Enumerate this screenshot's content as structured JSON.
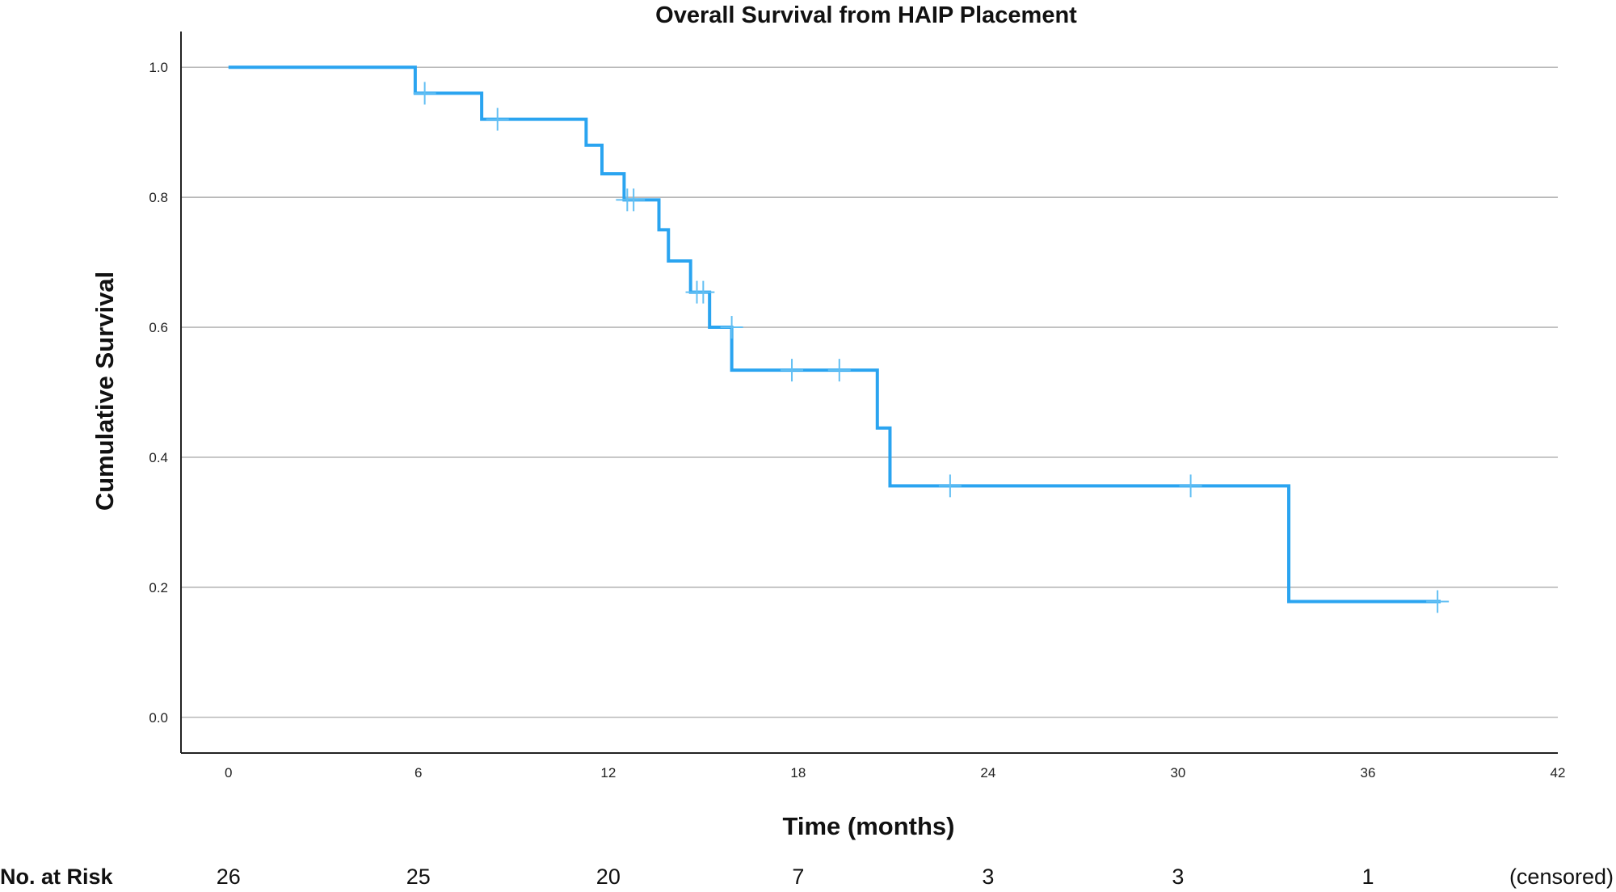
{
  "chart_data": {
    "type": "line",
    "title": "Overall Survival from HAIP Placement",
    "xlabel": "Time (months)",
    "ylabel": "Cumulative Survival",
    "xlim": [
      -1.5,
      42
    ],
    "ylim": [
      -0.055,
      1.055
    ],
    "x_ticks": [
      0,
      6,
      12,
      18,
      24,
      30,
      36,
      42
    ],
    "y_ticks": [
      0.0,
      0.2,
      0.4,
      0.6,
      0.8,
      1.0
    ],
    "y_tick_labels": [
      "0.0",
      "0.2",
      "0.4",
      "0.6",
      "0.8",
      "1.0"
    ],
    "grid": true,
    "line_color": "#2aa4f0",
    "censor_color": "#62bff3",
    "series": [
      {
        "steps": [
          [
            0,
            1.0
          ],
          [
            5.9,
            0.96
          ],
          [
            8.0,
            0.92
          ],
          [
            11.3,
            0.88
          ],
          [
            11.8,
            0.836
          ],
          [
            12.5,
            0.796
          ],
          [
            13.6,
            0.75
          ],
          [
            13.9,
            0.702
          ],
          [
            14.6,
            0.654
          ],
          [
            15.2,
            0.6
          ],
          [
            15.9,
            0.534
          ],
          [
            20.5,
            0.445
          ],
          [
            20.9,
            0.356
          ],
          [
            33.5,
            0.178
          ],
          [
            38.3,
            0.178
          ]
        ],
        "censored": [
          [
            6.2,
            0.96
          ],
          [
            8.5,
            0.92
          ],
          [
            12.6,
            0.796
          ],
          [
            12.8,
            0.796
          ],
          [
            14.8,
            0.654
          ],
          [
            15.0,
            0.654
          ],
          [
            15.9,
            0.6
          ],
          [
            17.8,
            0.534
          ],
          [
            19.3,
            0.534
          ],
          [
            22.8,
            0.356
          ],
          [
            30.4,
            0.356
          ],
          [
            38.2,
            0.178
          ]
        ]
      }
    ],
    "risk_table": {
      "label": "No. at Risk",
      "counts": [
        "26",
        "25",
        "20",
        "7",
        "3",
        "3",
        "1"
      ],
      "at_times": [
        0,
        6,
        12,
        18,
        24,
        30,
        36
      ],
      "tail_label": "(censored)"
    }
  }
}
